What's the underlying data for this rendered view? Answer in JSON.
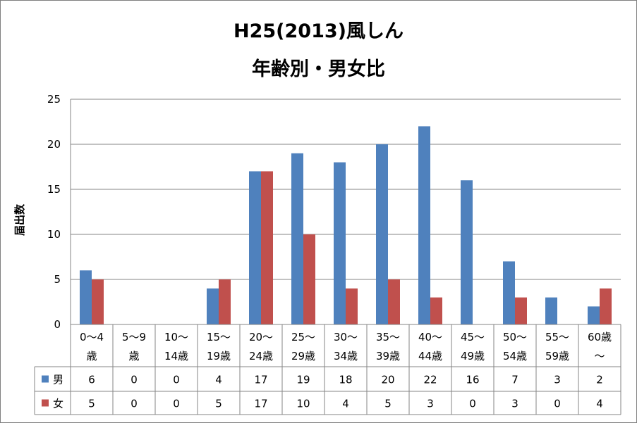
{
  "chart_data": {
    "type": "bar",
    "title_line1": "H25(2013)風しん",
    "title_line2": "年齢別・男女比",
    "ylabel": "届出数",
    "ylim": [
      0,
      25
    ],
    "yticks": [
      "0",
      "5",
      "10",
      "15",
      "20",
      "25"
    ],
    "categories": [
      {
        "line1": "0～4",
        "line2": "歳"
      },
      {
        "line1": "5～9",
        "line2": "歳"
      },
      {
        "line1": "10～",
        "line2": "14歳"
      },
      {
        "line1": "15～",
        "line2": "19歳"
      },
      {
        "line1": "20～",
        "line2": "24歳"
      },
      {
        "line1": "25～",
        "line2": "29歳"
      },
      {
        "line1": "30～",
        "line2": "34歳"
      },
      {
        "line1": "35～",
        "line2": "39歳"
      },
      {
        "line1": "40～",
        "line2": "44歳"
      },
      {
        "line1": "45～",
        "line2": "49歳"
      },
      {
        "line1": "50～",
        "line2": "54歳"
      },
      {
        "line1": "55～",
        "line2": "59歳"
      },
      {
        "line1": "60歳",
        "line2": "～"
      }
    ],
    "series": [
      {
        "name": "男",
        "color": "#4f81bd",
        "values": [
          6,
          0,
          0,
          4,
          17,
          19,
          18,
          20,
          22,
          16,
          7,
          3,
          2
        ]
      },
      {
        "name": "女",
        "color": "#c0504d",
        "values": [
          5,
          0,
          0,
          5,
          17,
          10,
          4,
          5,
          3,
          0,
          3,
          0,
          4
        ]
      }
    ],
    "grid": true,
    "legend": "data-table"
  }
}
